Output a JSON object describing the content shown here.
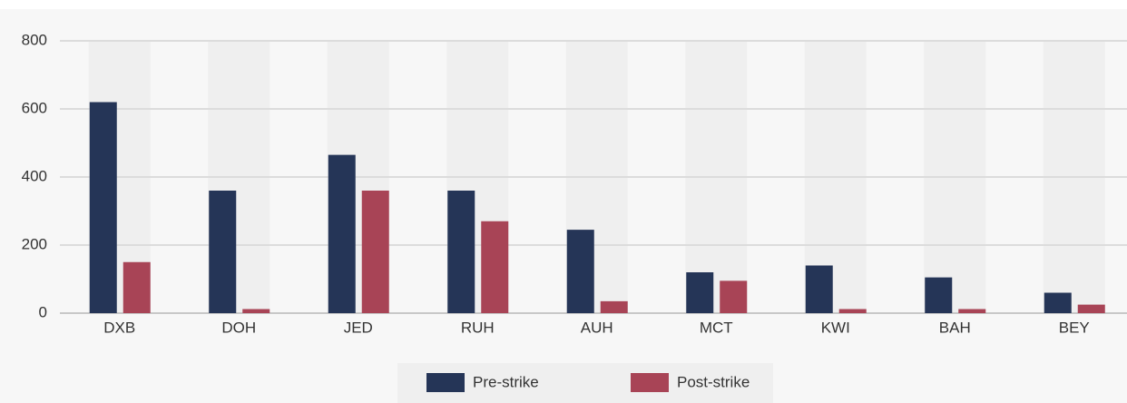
{
  "chart_data": {
    "type": "bar",
    "categories": [
      "DXB",
      "DOH",
      "JED",
      "RUH",
      "AUH",
      "MCT",
      "KWI",
      "BAH",
      "BEY"
    ],
    "series": [
      {
        "name": "Pre-strike",
        "color": "#253557",
        "values": [
          620,
          360,
          465,
          360,
          245,
          120,
          140,
          105,
          60
        ]
      },
      {
        "name": "Post-strike",
        "color": "#a84456",
        "values": [
          150,
          12,
          360,
          270,
          35,
          95,
          12,
          12,
          25
        ]
      }
    ],
    "ylim": [
      0,
      800
    ],
    "yticks": [
      0,
      200,
      400,
      600,
      800
    ],
    "grid": true,
    "legend": "bottom"
  }
}
